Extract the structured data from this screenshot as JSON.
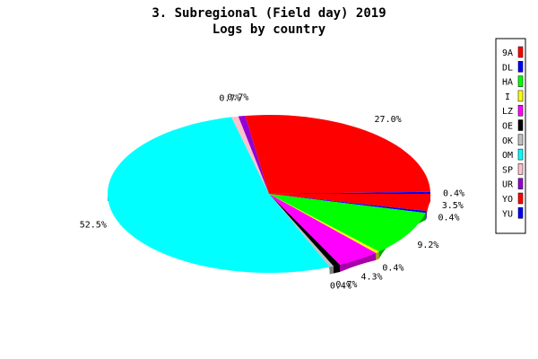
{
  "chart_data": {
    "type": "pie",
    "title": "3. Subregional (Field day) 2019",
    "subtitle": "Logs by country",
    "legend_position": "right",
    "slices": [
      {
        "label": "9A",
        "value": 3.5,
        "color": "#ff0000",
        "display": "3.5%"
      },
      {
        "label": "DL",
        "value": 0.4,
        "color": "#0000ff",
        "display": "0.4%"
      },
      {
        "label": "HA",
        "value": 9.2,
        "color": "#00ff00",
        "display": "9.2%"
      },
      {
        "label": "I",
        "value": 0.4,
        "color": "#ffff00",
        "display": "0.4%"
      },
      {
        "label": "LZ",
        "value": 4.3,
        "color": "#ff00ff",
        "display": "4.3%"
      },
      {
        "label": "OE",
        "value": 0.7,
        "color": "#000000",
        "display": "0.7%"
      },
      {
        "label": "OK",
        "value": 0.4,
        "color": "#c0c0c0",
        "display": "0.4%"
      },
      {
        "label": "OM",
        "value": 52.5,
        "color": "#00ffff",
        "display": "52.5%"
      },
      {
        "label": "SP",
        "value": 0.7,
        "color": "#ffc0cb",
        "display": "0.7%"
      },
      {
        "label": "UR",
        "value": 0.7,
        "color": "#9400d3",
        "display": "0.7%"
      },
      {
        "label": "YO",
        "value": 27.0,
        "color": "#ff0000",
        "display": "27.0%"
      },
      {
        "label": "YU",
        "value": 0.4,
        "color": "#0000ff",
        "display": "0.4%"
      }
    ]
  }
}
